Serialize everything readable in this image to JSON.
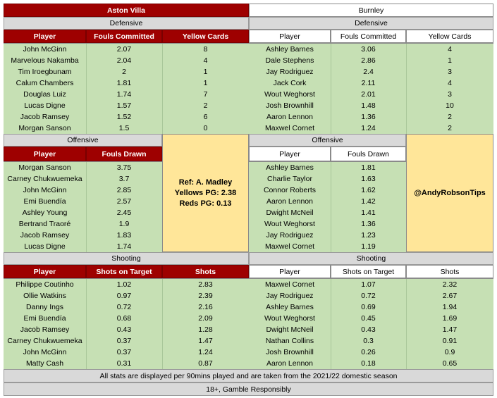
{
  "villa": {
    "team": "Aston Villa",
    "defensive": {
      "label": "Defensive",
      "headers": [
        "Player",
        "Fouls Committed",
        "Yellow Cards"
      ],
      "rows": [
        [
          "John McGinn",
          "2.07",
          "8"
        ],
        [
          "Marvelous Nakamba",
          "2.04",
          "4"
        ],
        [
          "Tim Iroegbunam",
          "2",
          "1"
        ],
        [
          "Calum Chambers",
          "1.81",
          "1"
        ],
        [
          "Douglas Luiz",
          "1.74",
          "7"
        ],
        [
          "Lucas Digne",
          "1.57",
          "2"
        ],
        [
          "Jacob Ramsey",
          "1.52",
          "6"
        ],
        [
          "Morgan Sanson",
          "1.5",
          "0"
        ]
      ]
    },
    "offensive": {
      "label": "Offensive",
      "headers": [
        "Player",
        "Fouls Drawn"
      ],
      "rows": [
        [
          "Morgan Sanson",
          "3.75"
        ],
        [
          "Carney Chukwuemeka",
          "3.7"
        ],
        [
          "John McGinn",
          "2.85"
        ],
        [
          "Emi Buendía",
          "2.57"
        ],
        [
          "Ashley Young",
          "2.45"
        ],
        [
          "Bertrand Traoré",
          "1.9"
        ],
        [
          "Jacob Ramsey",
          "1.83"
        ],
        [
          "Lucas Digne",
          "1.74"
        ]
      ]
    },
    "shooting": {
      "label": "Shooting",
      "headers": [
        "Player",
        "Shots on Target",
        "Shots"
      ],
      "rows": [
        [
          "Philippe Coutinho",
          "1.02",
          "2.83"
        ],
        [
          "Ollie Watkins",
          "0.97",
          "2.39"
        ],
        [
          "Danny Ings",
          "0.72",
          "2.16"
        ],
        [
          "Emi Buendía",
          "0.68",
          "2.09"
        ],
        [
          "Jacob Ramsey",
          "0.43",
          "1.28"
        ],
        [
          "Carney Chukwuemeka",
          "0.37",
          "1.47"
        ],
        [
          "John McGinn",
          "0.37",
          "1.24"
        ],
        [
          "Matty Cash",
          "0.31",
          "0.87"
        ]
      ]
    }
  },
  "burnley": {
    "team": "Burnley",
    "defensive": {
      "label": "Defensive",
      "headers": [
        "Player",
        "Fouls Committed",
        "Yellow Cards"
      ],
      "rows": [
        [
          "Ashley Barnes",
          "3.06",
          "4"
        ],
        [
          "Dale Stephens",
          "2.86",
          "1"
        ],
        [
          "Jay Rodriguez",
          "2.4",
          "3"
        ],
        [
          "Jack Cork",
          "2.11",
          "4"
        ],
        [
          "Wout Weghorst",
          "2.01",
          "3"
        ],
        [
          "Josh Brownhill",
          "1.48",
          "10"
        ],
        [
          "Aaron Lennon",
          "1.36",
          "2"
        ],
        [
          "Maxwel Cornet",
          "1.24",
          "2"
        ]
      ]
    },
    "offensive": {
      "label": "Offensive",
      "headers": [
        "Player",
        "Fouls Drawn"
      ],
      "rows": [
        [
          "Ashley Barnes",
          "1.81"
        ],
        [
          "Charlie Taylor",
          "1.63"
        ],
        [
          "Connor Roberts",
          "1.62"
        ],
        [
          "Aaron Lennon",
          "1.42"
        ],
        [
          "Dwight McNeil",
          "1.41"
        ],
        [
          "Wout Weghorst",
          "1.36"
        ],
        [
          "Jay Rodriguez",
          "1.23"
        ],
        [
          "Maxwel Cornet",
          "1.19"
        ]
      ]
    },
    "shooting": {
      "label": "Shooting",
      "headers": [
        "Player",
        "Shots on Target",
        "Shots"
      ],
      "rows": [
        [
          "Maxwel Cornet",
          "1.07",
          "2.32"
        ],
        [
          "Jay Rodriguez",
          "0.72",
          "2.67"
        ],
        [
          "Ashley Barnes",
          "0.69",
          "1.94"
        ],
        [
          "Wout Weghorst",
          "0.45",
          "1.69"
        ],
        [
          "Dwight McNeil",
          "0.43",
          "1.47"
        ],
        [
          "Nathan Collins",
          "0.3",
          "0.91"
        ],
        [
          "Josh Brownhill",
          "0.26",
          "0.9"
        ],
        [
          "Aaron Lennon",
          "0.18",
          "0.65"
        ]
      ]
    }
  },
  "referee": {
    "name": "Ref: A. Madley",
    "yellows": "Yellows PG: 2.38",
    "reds": "Reds PG: 0.13"
  },
  "handle": "@AndyRobsonTips",
  "footer": {
    "note": "All stats are displayed per 90mins played and are taken from the 2021/22 domestic season",
    "gamble": "18+, Gamble Responsibly"
  },
  "colors": {
    "villa_claret": "#9e0000",
    "row_green": "#c6e0b4",
    "info_yellow": "#ffe699",
    "section_grey": "#d9d9d9"
  }
}
